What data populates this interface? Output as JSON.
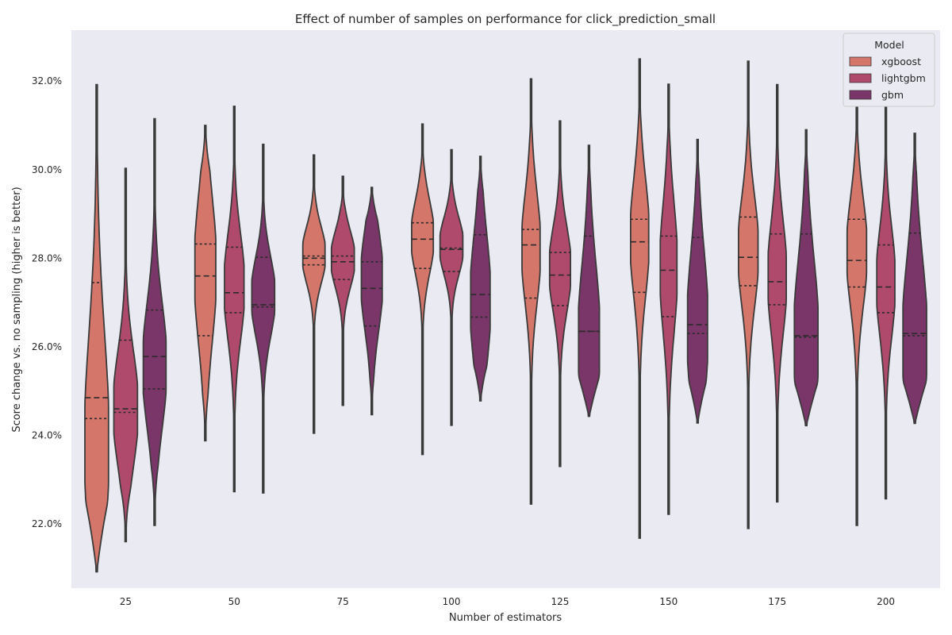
{
  "chart_data": {
    "type": "violin",
    "title": "Effect of number of samples on performance for click_prediction_small",
    "xlabel": "Number of estimators",
    "ylabel": "Score change vs. no sampling (higher is better)",
    "categories": [
      "25",
      "50",
      "75",
      "100",
      "125",
      "150",
      "175",
      "200"
    ],
    "ylim": [
      0.2055,
      0.3315
    ],
    "yticks": [
      0.22,
      0.24,
      0.26,
      0.28,
      0.3,
      0.32
    ],
    "ytick_labels": [
      "22.0%",
      "24.0%",
      "26.0%",
      "28.0%",
      "30.0%",
      "32.0%"
    ],
    "grid": false,
    "legend": {
      "title": "Model",
      "placement": "top-right"
    },
    "series": [
      {
        "name": "xgboost",
        "color": "#d4766a",
        "values": [
          {
            "min": 0.2092,
            "max": 0.3192,
            "q1": 0.2438,
            "median": 0.2485,
            "q3": 0.2745,
            "mode": 0.235,
            "width": 0.85
          },
          {
            "min": 0.2388,
            "max": 0.31,
            "q1": 0.2625,
            "median": 0.276,
            "q3": 0.2832,
            "mode": 0.278,
            "width": 0.75
          },
          {
            "min": 0.2405,
            "max": 0.3033,
            "q1": 0.2785,
            "median": 0.28,
            "q3": 0.2805,
            "mode": 0.281,
            "width": 0.8
          },
          {
            "min": 0.2357,
            "max": 0.3103,
            "q1": 0.2777,
            "median": 0.2843,
            "q3": 0.288,
            "mode": 0.285,
            "width": 0.78
          },
          {
            "min": 0.2245,
            "max": 0.3205,
            "q1": 0.271,
            "median": 0.283,
            "q3": 0.2865,
            "mode": 0.282,
            "width": 0.65
          },
          {
            "min": 0.2168,
            "max": 0.325,
            "q1": 0.2723,
            "median": 0.2837,
            "q3": 0.2888,
            "mode": 0.285,
            "width": 0.65
          },
          {
            "min": 0.219,
            "max": 0.3245,
            "q1": 0.2738,
            "median": 0.2802,
            "q3": 0.2893,
            "mode": 0.282,
            "width": 0.7
          },
          {
            "min": 0.2197,
            "max": 0.319,
            "q1": 0.2735,
            "median": 0.2795,
            "q3": 0.2888,
            "mode": 0.282,
            "width": 0.7
          }
        ]
      },
      {
        "name": "lightgbm",
        "color": "#b04a6c",
        "values": [
          {
            "min": 0.216,
            "max": 0.3003,
            "q1": 0.2452,
            "median": 0.246,
            "q3": 0.2615,
            "mode": 0.246,
            "width": 0.85
          },
          {
            "min": 0.2273,
            "max": 0.3143,
            "q1": 0.2677,
            "median": 0.2722,
            "q3": 0.2825,
            "mode": 0.274,
            "width": 0.7
          },
          {
            "min": 0.2468,
            "max": 0.2985,
            "q1": 0.2752,
            "median": 0.2792,
            "q3": 0.2805,
            "mode": 0.28,
            "width": 0.82
          },
          {
            "min": 0.2423,
            "max": 0.3045,
            "q1": 0.277,
            "median": 0.282,
            "q3": 0.2823,
            "mode": 0.283,
            "width": 0.82
          },
          {
            "min": 0.233,
            "max": 0.311,
            "q1": 0.2693,
            "median": 0.2762,
            "q3": 0.2813,
            "mode": 0.278,
            "width": 0.75
          },
          {
            "min": 0.2222,
            "max": 0.3193,
            "q1": 0.2668,
            "median": 0.2773,
            "q3": 0.285,
            "mode": 0.278,
            "width": 0.6
          },
          {
            "min": 0.225,
            "max": 0.3192,
            "q1": 0.2695,
            "median": 0.2747,
            "q3": 0.2855,
            "mode": 0.276,
            "width": 0.65
          },
          {
            "min": 0.2257,
            "max": 0.3172,
            "q1": 0.2677,
            "median": 0.2735,
            "q3": 0.283,
            "mode": 0.275,
            "width": 0.65
          }
        ]
      },
      {
        "name": "gbm",
        "color": "#7a3668",
        "values": [
          {
            "min": 0.2197,
            "max": 0.3115,
            "q1": 0.2505,
            "median": 0.2578,
            "q3": 0.2683,
            "mode": 0.255,
            "width": 0.82
          },
          {
            "min": 0.227,
            "max": 0.3057,
            "q1": 0.269,
            "median": 0.2695,
            "q3": 0.2802,
            "mode": 0.272,
            "width": 0.82
          },
          {
            "min": 0.2447,
            "max": 0.296,
            "q1": 0.2647,
            "median": 0.2732,
            "q3": 0.2792,
            "mode": 0.276,
            "width": 0.75
          },
          {
            "min": 0.2478,
            "max": 0.303,
            "q1": 0.2667,
            "median": 0.2718,
            "q3": 0.2853,
            "mode": 0.27,
            "width": 0.7
          },
          {
            "min": 0.2443,
            "max": 0.3055,
            "q1": 0.2635,
            "median": 0.2635,
            "q3": 0.285,
            "mode": 0.261,
            "width": 0.75
          },
          {
            "min": 0.2428,
            "max": 0.3068,
            "q1": 0.263,
            "median": 0.265,
            "q3": 0.2847,
            "mode": 0.264,
            "width": 0.72
          },
          {
            "min": 0.2422,
            "max": 0.309,
            "q1": 0.2622,
            "median": 0.2625,
            "q3": 0.2855,
            "mode": 0.261,
            "width": 0.85
          },
          {
            "min": 0.2427,
            "max": 0.3082,
            "q1": 0.2625,
            "median": 0.263,
            "q3": 0.2857,
            "mode": 0.261,
            "width": 0.85
          }
        ]
      }
    ]
  },
  "style": {
    "plot_background": "#eaeaf2",
    "outline_color": "#3a3a3a",
    "quartile_line_color": "#2b2b2b"
  }
}
